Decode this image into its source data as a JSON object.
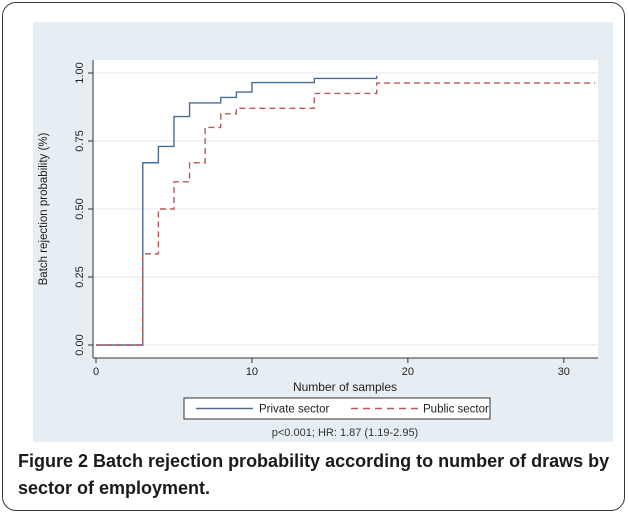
{
  "chart_data": {
    "type": "line",
    "step": true,
    "title": "",
    "xlabel": "Number of samples",
    "ylabel": "Batch rejection probability (%)",
    "xlim": [
      0,
      32
    ],
    "ylim": [
      0,
      1
    ],
    "xticks": [
      0,
      10,
      20,
      30
    ],
    "yticks": [
      0,
      0.25,
      0.5,
      0.75,
      1
    ],
    "ytick_labels": [
      "0.00",
      "0.25",
      "0.50",
      "0.75",
      "1.00"
    ],
    "grid": "horizontal",
    "legend_position": "bottom",
    "series": [
      {
        "name": "Private sector",
        "color": "#4a6d96",
        "style": "solid",
        "x": [
          0,
          3,
          4,
          5,
          6,
          8,
          9,
          10,
          14,
          18
        ],
        "y": [
          0,
          0.67,
          0.73,
          0.84,
          0.89,
          0.91,
          0.93,
          0.965,
          0.98,
          0.99
        ]
      },
      {
        "name": "Public sector",
        "color": "#b85a5a",
        "style": "dashed",
        "x": [
          0,
          3,
          4,
          5,
          6,
          7,
          8,
          9,
          14,
          18,
          32
        ],
        "y": [
          0,
          0.335,
          0.5,
          0.6,
          0.67,
          0.8,
          0.85,
          0.87,
          0.925,
          0.963,
          0.963
        ]
      }
    ],
    "note": "p<0.001; HR: 1.87 (1.19-2.95)"
  },
  "caption": {
    "label": "Figure 2",
    "text": "Batch rejection probability according to number of draws by sector of employment."
  }
}
